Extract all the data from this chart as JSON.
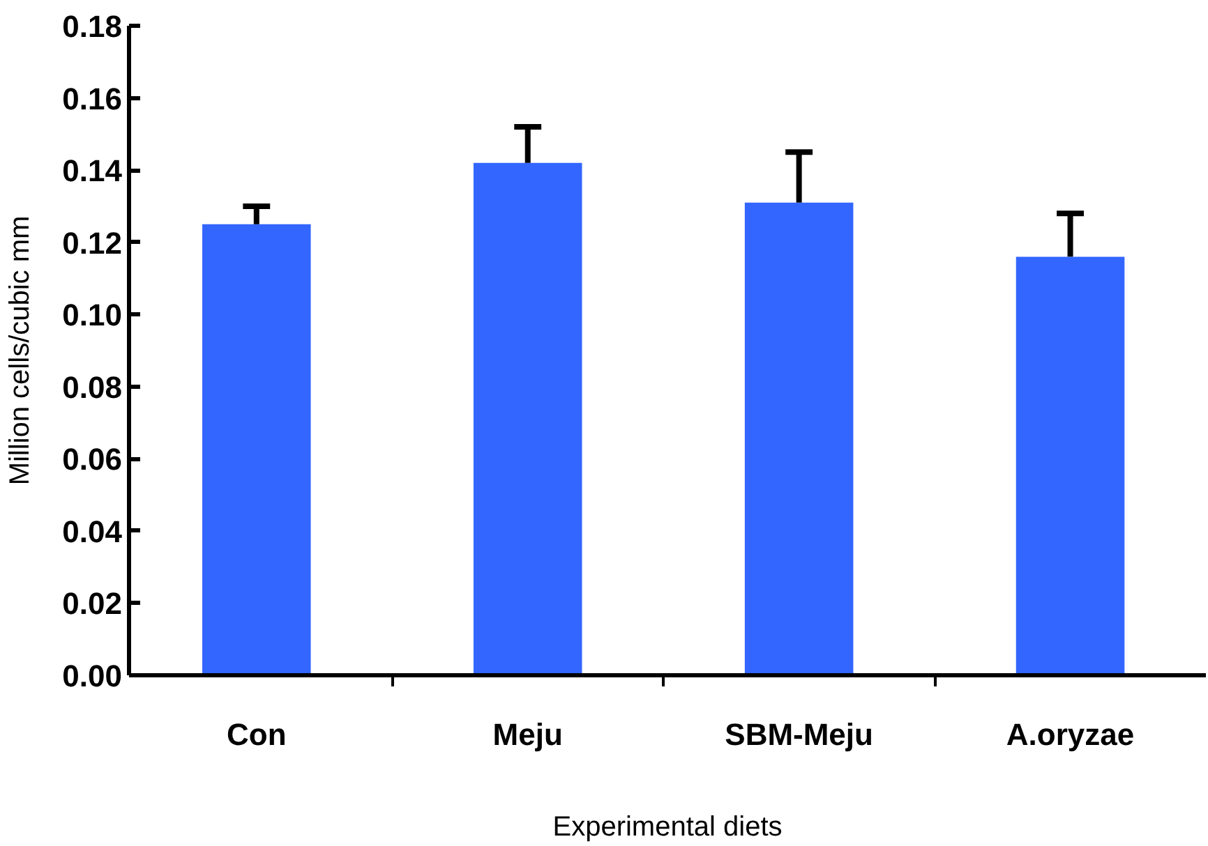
{
  "chart_data": {
    "type": "bar",
    "xlabel": "Experimental diets",
    "ylabel": "Million cells/cubic mm",
    "categories": [
      "Con",
      "Meju",
      "SBM-Meju",
      "A.oryzae"
    ],
    "values": [
      0.125,
      0.142,
      0.131,
      0.116
    ],
    "errors": [
      [
        0.125,
        0.13
      ],
      [
        0.142,
        0.152
      ],
      [
        0.131,
        0.145
      ],
      [
        0.116,
        0.128
      ]
    ],
    "color": "#3366ff",
    "ylim": [
      0,
      0.18
    ],
    "yticks": [
      {
        "value": 0,
        "label": "0.00"
      },
      {
        "value": 0.02,
        "label": "0.02"
      },
      {
        "value": 0.04,
        "label": "0.04"
      },
      {
        "value": 0.06,
        "label": "0.06"
      },
      {
        "value": 0.08,
        "label": "0.08"
      },
      {
        "value": 0.1,
        "label": "0.10"
      },
      {
        "value": 0.12,
        "label": "0.12"
      },
      {
        "value": 0.14,
        "label": "0.14"
      },
      {
        "value": 0.16,
        "label": "0.16"
      },
      {
        "value": 0.18,
        "label": "0.18"
      }
    ],
    "grid": false
  }
}
